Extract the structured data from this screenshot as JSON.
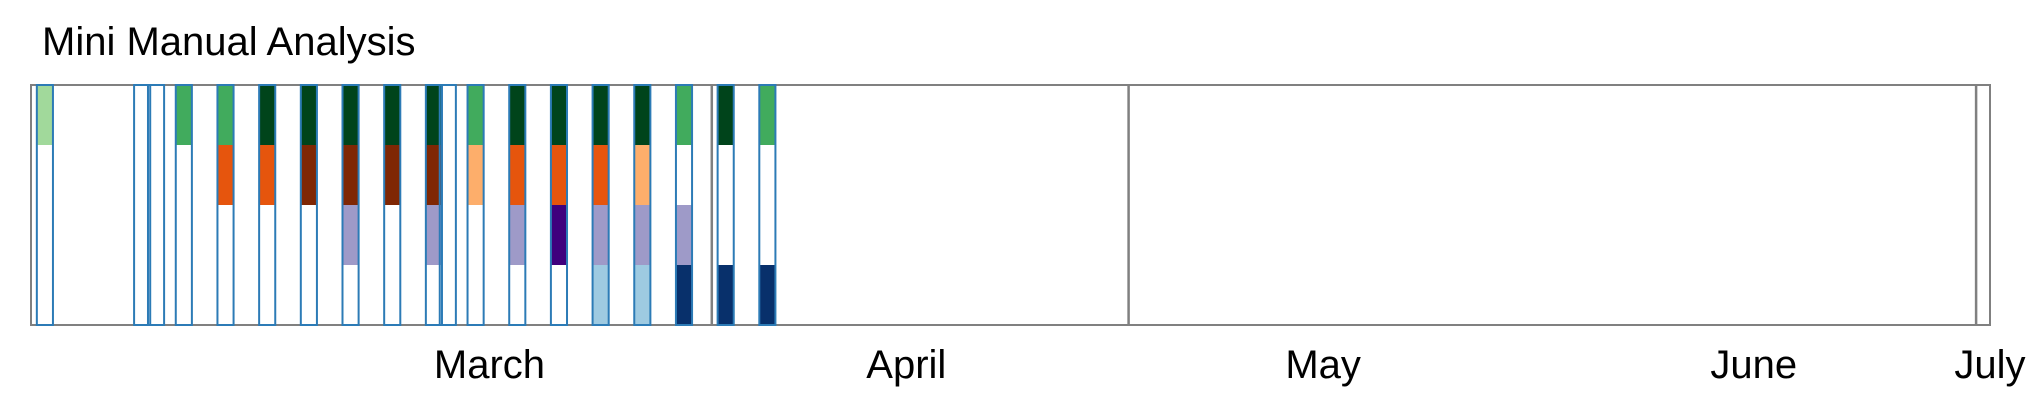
{
  "chart_data": {
    "type": "heatmap",
    "title": "Mini Manual Analysis",
    "x_axis": {
      "type": "date",
      "range": [
        "2024-02-12",
        "2024-07-02"
      ],
      "month_labels": [
        {
          "label": "March",
          "center": "2024-03-16"
        },
        {
          "label": "April",
          "center": "2024-04-15"
        },
        {
          "label": "May",
          "center": "2024-05-15"
        },
        {
          "label": "June",
          "center": "2024-06-15"
        },
        {
          "label": "July",
          "center": "2024-07-02"
        }
      ],
      "month_dividers": [
        "2024-04-01",
        "2024-05-01",
        "2024-07-01"
      ]
    },
    "rows": 4,
    "grid": false,
    "legend": "none",
    "columns": [
      {
        "date": "2024-02-13",
        "cells": [
          "#a1d99b",
          null,
          null,
          null
        ]
      },
      {
        "date": "2024-02-20",
        "cells": [
          null,
          null,
          null,
          null
        ]
      },
      {
        "date": "2024-02-21",
        "cells": [
          null,
          null,
          null,
          null
        ]
      },
      {
        "date": "2024-02-23",
        "cells": [
          "#41ab5d",
          null,
          null,
          null
        ]
      },
      {
        "date": "2024-02-26",
        "cells": [
          "#41ab5d",
          "#e6550d",
          null,
          null
        ]
      },
      {
        "date": "2024-02-29",
        "cells": [
          "#00441b",
          "#e6550d",
          null,
          null
        ]
      },
      {
        "date": "2024-03-03",
        "cells": [
          "#00441b",
          "#7f2704",
          null,
          null
        ]
      },
      {
        "date": "2024-03-06",
        "cells": [
          "#00441b",
          "#7f2704",
          "#9e9ac8",
          null
        ]
      },
      {
        "date": "2024-03-09",
        "cells": [
          "#00441b",
          "#7f2704",
          null,
          null
        ]
      },
      {
        "date": "2024-03-12",
        "cells": [
          "#00441b",
          "#7f2704",
          "#9e9ac8",
          null
        ]
      },
      {
        "date": "2024-03-13",
        "cells": [
          null,
          null,
          null,
          null
        ]
      },
      {
        "date": "2024-03-15",
        "cells": [
          "#41ab5d",
          "#fdae6b",
          null,
          null
        ]
      },
      {
        "date": "2024-03-18",
        "cells": [
          "#00441b",
          "#e6550d",
          "#9e9ac8",
          null
        ]
      },
      {
        "date": "2024-03-21",
        "cells": [
          "#00441b",
          "#e6550d",
          "#3f007d",
          null
        ]
      },
      {
        "date": "2024-03-24",
        "cells": [
          "#00441b",
          "#e6550d",
          "#9e9ac8",
          "#9ecae1"
        ]
      },
      {
        "date": "2024-03-27",
        "cells": [
          "#00441b",
          "#fdae6b",
          "#9e9ac8",
          "#9ecae1"
        ]
      },
      {
        "date": "2024-03-30",
        "cells": [
          "#41ab5d",
          null,
          "#9e9ac8",
          "#08306b"
        ]
      },
      {
        "date": "2024-04-02",
        "cells": [
          "#00441b",
          null,
          null,
          "#08306b"
        ]
      },
      {
        "date": "2024-04-05",
        "cells": [
          "#41ab5d",
          null,
          null,
          "#08306b"
        ]
      }
    ]
  }
}
